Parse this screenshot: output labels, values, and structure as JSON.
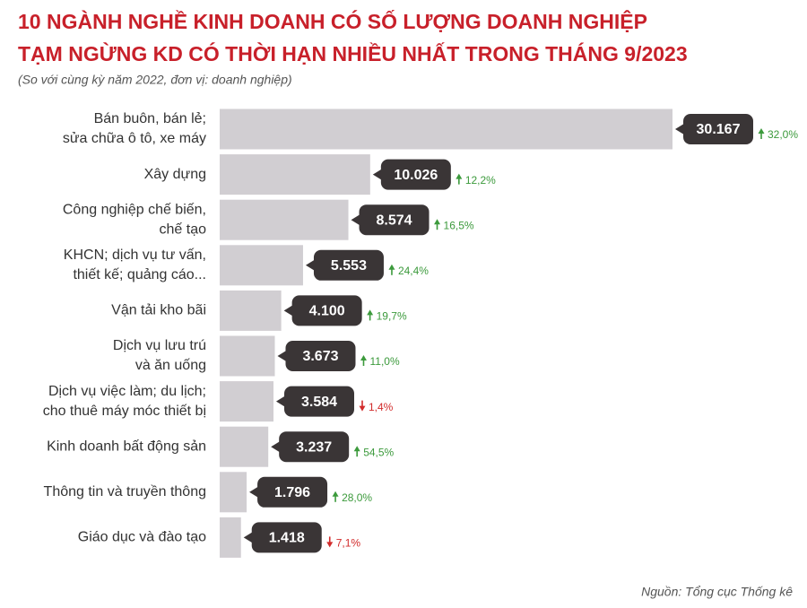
{
  "chart_data": {
    "type": "bar",
    "title": [
      "10 NGÀNH NGHỀ KINH DOANH CÓ SỐ LƯỢNG DOANH NGHIỆP",
      "TẠM NGỪNG KD CÓ THỜI HẠN NHIỀU NHẤT TRONG THÁNG 9/2023"
    ],
    "subtitle": "(So với cùng kỳ năm 2022, đơn vị: doanh nghiệp)",
    "source": "Nguồn: Tổng cục Thống kê",
    "categories": [
      [
        "Bán buôn, bán lẻ;",
        "sửa chữa ô tô, xe máy"
      ],
      [
        "Xây dựng"
      ],
      [
        "Công nghiệp chế biến,",
        "chế tạo"
      ],
      [
        "KHCN; dịch vụ tư vấn,",
        "thiết kế; quảng cáo..."
      ],
      [
        "Vận tải kho bãi"
      ],
      [
        "Dịch vụ lưu trú",
        "và ăn uống"
      ],
      [
        "Dịch vụ việc làm; du lịch;",
        "cho thuê máy móc thiết bị"
      ],
      [
        "Kinh doanh bất động sản"
      ],
      [
        "Thông tin và truyền thông"
      ],
      [
        "Giáo dục và đào tạo"
      ]
    ],
    "values": [
      30167,
      10026,
      8574,
      5553,
      4100,
      3673,
      3584,
      3237,
      1796,
      1418
    ],
    "value_labels": [
      "30.167",
      "10.026",
      "8.574",
      "5.553",
      "4.100",
      "3.673",
      "3.584",
      "3.237",
      "1.796",
      "1.418"
    ],
    "changes": [
      32.0,
      12.2,
      16.5,
      24.4,
      19.7,
      11.0,
      -1.4,
      54.5,
      28.0,
      -7.1
    ],
    "change_labels": [
      "32,0%",
      "12,2%",
      "16,5%",
      "24,4%",
      "19,7%",
      "11,0%",
      "1,4%",
      "54,5%",
      "28,0%",
      "7,1%"
    ],
    "color": "#d1ced2",
    "label_color": "#3a3536",
    "up_color": "#3c9a3c",
    "down_color": "#d22b2b"
  }
}
